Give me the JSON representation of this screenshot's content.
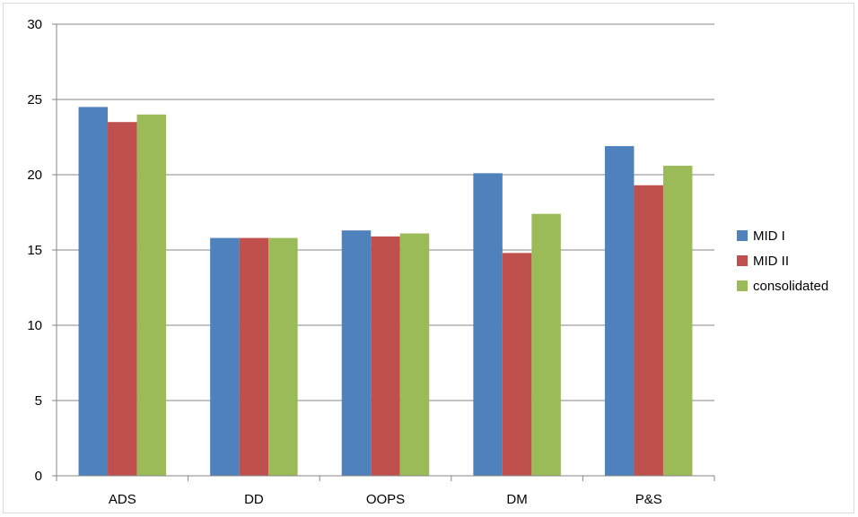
{
  "chart_data": {
    "type": "bar",
    "categories": [
      "ADS",
      "DD",
      "OOPS",
      "DM",
      "P&S"
    ],
    "series": [
      {
        "name": "MID I",
        "color": "#4f81bd",
        "values": [
          24.5,
          15.8,
          16.3,
          20.1,
          21.9
        ]
      },
      {
        "name": "MID II",
        "color": "#c0504d",
        "values": [
          23.5,
          15.8,
          15.9,
          14.8,
          19.3
        ]
      },
      {
        "name": "consolidated",
        "color": "#9bbb59",
        "values": [
          24.0,
          15.8,
          16.1,
          17.4,
          20.6
        ]
      }
    ],
    "ylim": [
      0,
      30
    ],
    "yticks": [
      "0",
      "5",
      "10",
      "15",
      "20",
      "25",
      "30"
    ],
    "grid": true,
    "legend_position": "right"
  }
}
